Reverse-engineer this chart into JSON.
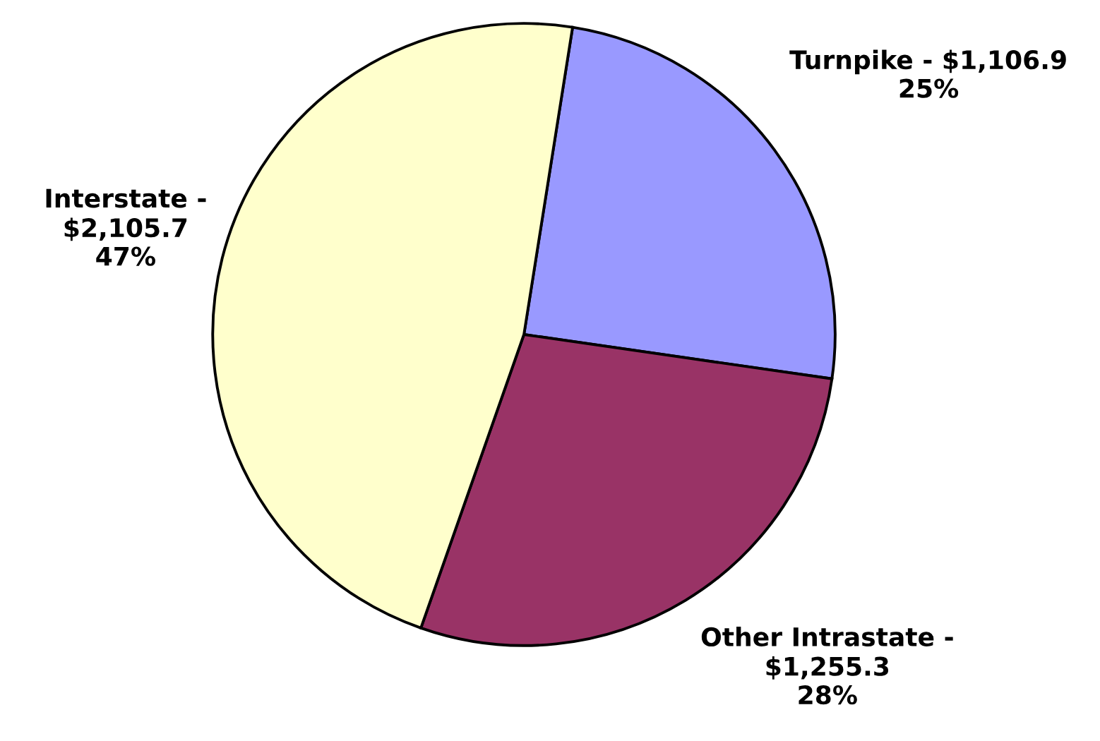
{
  "chart_data": {
    "type": "pie",
    "categories": [
      "Turnpike -",
      "Other Intrastate -",
      "Interstate -"
    ],
    "values": [
      1106.9,
      1255.3,
      2105.7
    ],
    "value_labels": [
      "$1,106.9",
      "$1,255.3",
      "$2,105.7"
    ],
    "colors": [
      "#9999ff",
      "#993366",
      "#ffffcc"
    ],
    "annotations": [
      "25%",
      "28%",
      "47%"
    ]
  }
}
